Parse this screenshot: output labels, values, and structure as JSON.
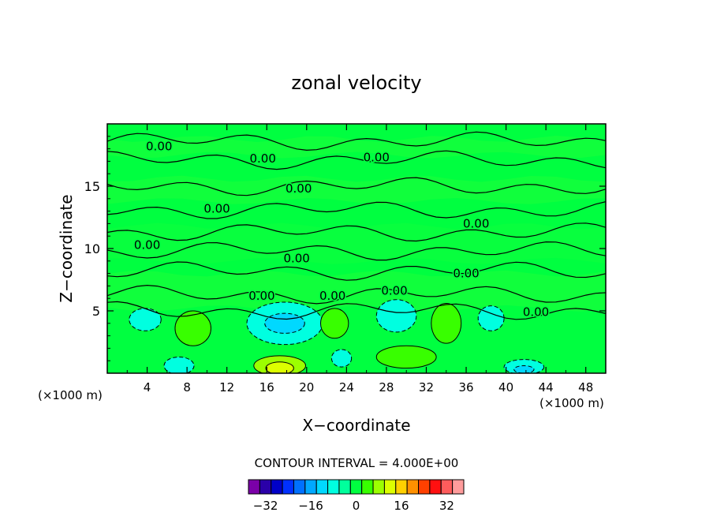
{
  "chart_data": {
    "type": "heatmap",
    "title": "zonal velocity",
    "xlabel": "X−coordinate",
    "ylabel": "Z−coordinate",
    "x_unit_left": "(×1000 m)",
    "x_unit_right": "(×1000 m)",
    "xlim": [
      0,
      50
    ],
    "ylim": [
      0,
      20
    ],
    "x_ticks": [
      4,
      8,
      12,
      16,
      20,
      24,
      28,
      32,
      36,
      40,
      44,
      48
    ],
    "y_ticks": [
      5,
      10,
      15
    ],
    "contour_interval_text": "CONTOUR INTERVAL = 4.000E+00",
    "contour_labels": [
      {
        "text": "0.00",
        "x": 5.2,
        "z": 18.2
      },
      {
        "text": "0.00",
        "x": 15.6,
        "z": 17.2
      },
      {
        "text": "0.00",
        "x": 27.0,
        "z": 17.3
      },
      {
        "text": "0.00",
        "x": 19.2,
        "z": 14.8
      },
      {
        "text": "0.00",
        "x": 11.0,
        "z": 13.2
      },
      {
        "text": "0.00",
        "x": 37.0,
        "z": 12.0
      },
      {
        "text": "0.00",
        "x": 4.0,
        "z": 10.3
      },
      {
        "text": "0.00",
        "x": 19.0,
        "z": 9.2
      },
      {
        "text": "0.00",
        "x": 36.0,
        "z": 8.0
      },
      {
        "text": "0.00",
        "x": 15.5,
        "z": 6.2
      },
      {
        "text": "0.00",
        "x": 22.6,
        "z": 6.2
      },
      {
        "text": "0.00",
        "x": 28.8,
        "z": 6.6
      },
      {
        "text": "0.00",
        "x": 43.0,
        "z": 4.9
      }
    ],
    "regions": [
      {
        "x": 17.8,
        "z": 4.0,
        "rx": 3.8,
        "rz": 1.7,
        "value": -6
      },
      {
        "x": 17.8,
        "z": 4.0,
        "rx": 2.0,
        "rz": 0.8,
        "value": -10
      },
      {
        "x": 3.8,
        "z": 4.3,
        "rx": 1.6,
        "rz": 0.9,
        "value": -6
      },
      {
        "x": 29.0,
        "z": 4.6,
        "rx": 2.0,
        "rz": 1.3,
        "value": -6
      },
      {
        "x": 38.5,
        "z": 4.4,
        "rx": 1.3,
        "rz": 1.0,
        "value": -6
      },
      {
        "x": 8.6,
        "z": 3.6,
        "rx": 1.8,
        "rz": 1.4,
        "value": 6
      },
      {
        "x": 22.8,
        "z": 4.0,
        "rx": 1.4,
        "rz": 1.2,
        "value": 6
      },
      {
        "x": 34.0,
        "z": 4.0,
        "rx": 1.5,
        "rz": 1.6,
        "value": 6
      },
      {
        "x": 17.3,
        "z": 0.6,
        "rx": 2.6,
        "rz": 0.8,
        "value": 10
      },
      {
        "x": 17.3,
        "z": 0.4,
        "rx": 1.4,
        "rz": 0.5,
        "value": 14
      },
      {
        "x": 30.0,
        "z": 1.3,
        "rx": 3.0,
        "rz": 0.9,
        "value": 6
      },
      {
        "x": 7.2,
        "z": 0.6,
        "rx": 1.5,
        "rz": 0.7,
        "value": -6
      },
      {
        "x": 23.5,
        "z": 1.2,
        "rx": 1.0,
        "rz": 0.7,
        "value": -6
      },
      {
        "x": 41.8,
        "z": 0.5,
        "rx": 2.0,
        "rz": 0.6,
        "value": -6
      },
      {
        "x": 41.8,
        "z": 0.3,
        "rx": 1.0,
        "rz": 0.3,
        "value": -10
      }
    ],
    "colorbar": {
      "levels": [
        -36,
        -32,
        -28,
        -24,
        -20,
        -16,
        -12,
        -8,
        -4,
        0,
        4,
        8,
        12,
        16,
        20,
        24,
        28,
        32,
        36
      ],
      "colors": [
        "#7b00a8",
        "#2a00a8",
        "#0000c8",
        "#0030ff",
        "#0070ff",
        "#00a8ff",
        "#00d8ff",
        "#00ffe0",
        "#00ff9c",
        "#00ff40",
        "#38ff00",
        "#9cff00",
        "#ddff00",
        "#ffd000",
        "#ff9000",
        "#ff4000",
        "#ff1010",
        "#ff5c5c",
        "#ff9c9c"
      ],
      "tick_labels": [
        "−32",
        "−16",
        "0",
        "16",
        "32"
      ],
      "tick_values": [
        -32,
        -16,
        0,
        16,
        32
      ]
    }
  }
}
